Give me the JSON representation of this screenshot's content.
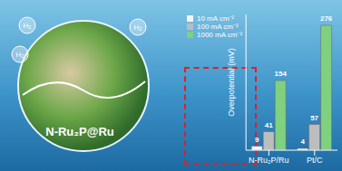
{
  "chart_data": {
    "type": "bar",
    "annotations": [
      "N-Ru₂P@Ru",
      "H₂"
    ],
    "y_label": "Overpotential (mV)",
    "categories": [
      "N-Ru₂P/Ru",
      "Pt/C"
    ],
    "series": [
      {
        "name": "10 mA cm⁻²",
        "color": "#f4f4f4",
        "values": [
          9,
          4
        ]
      },
      {
        "name": "100 mA cm⁻²",
        "color": "#bdbdbd",
        "values": [
          41,
          57
        ]
      },
      {
        "name": "1000 mA cm⁻²",
        "color": "#7fd07f",
        "values": [
          154,
          276
        ]
      }
    ],
    "ylim": [
      0,
      300
    ],
    "tick_labels": "x",
    "data_labels": true,
    "grid": false
  }
}
